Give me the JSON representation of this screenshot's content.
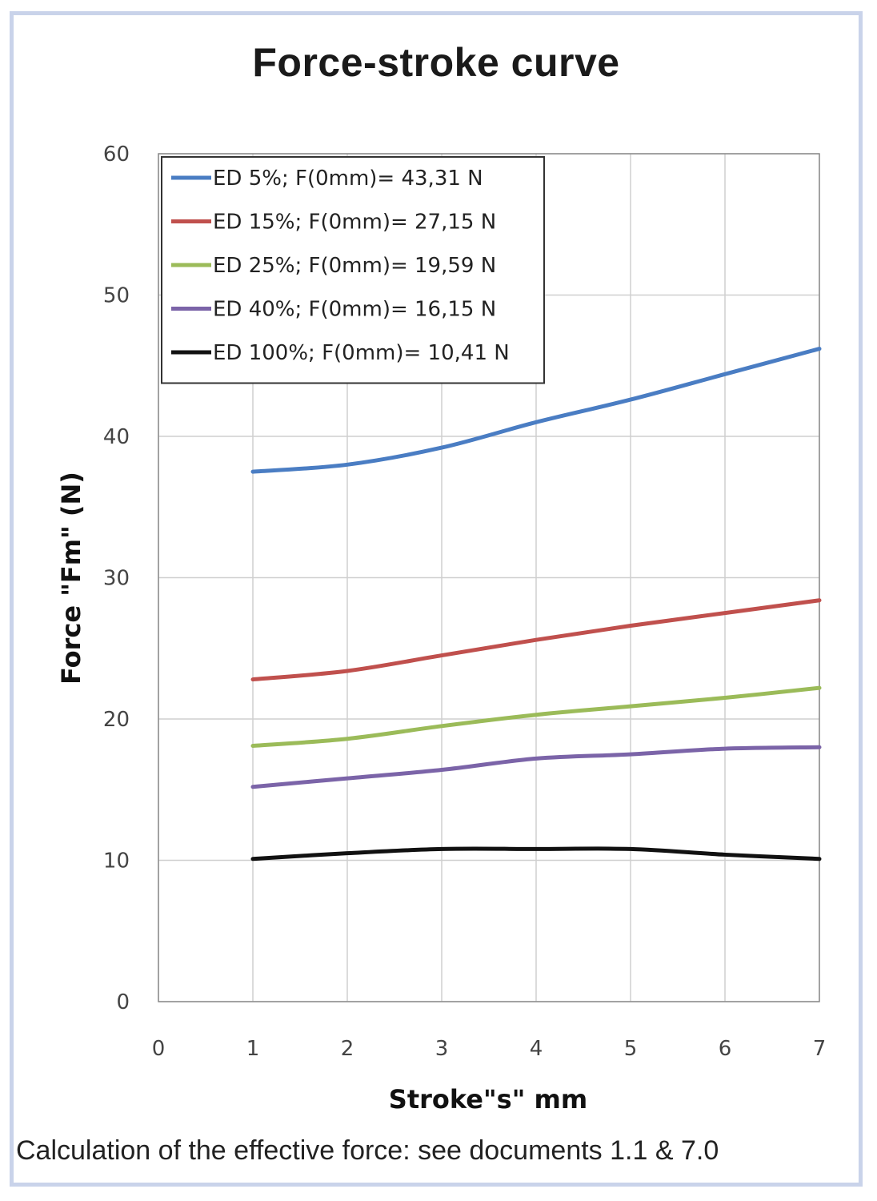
{
  "chart_data": {
    "type": "line",
    "title": "Force-stroke curve",
    "xlabel": "Stroke\"s\" mm",
    "ylabel": "Force \"Fm\" (N)",
    "xlim": [
      0,
      7
    ],
    "ylim": [
      0,
      60
    ],
    "x_ticks": [
      "0",
      "1",
      "2",
      "3",
      "4",
      "5",
      "6",
      "7"
    ],
    "y_ticks": [
      "0",
      "10",
      "20",
      "30",
      "40",
      "50",
      "60"
    ],
    "grid": true,
    "legend_position": "top-left",
    "x": [
      1,
      2,
      3,
      4,
      5,
      6,
      7
    ],
    "series": [
      {
        "name": "ED 5%; F(0mm)= 43,31 N",
        "color": "#4a7dc3",
        "values": [
          37.5,
          38.0,
          39.2,
          41.0,
          42.6,
          44.4,
          46.2
        ]
      },
      {
        "name": "ED 15%; F(0mm)= 27,15 N",
        "color": "#c0504d",
        "values": [
          22.8,
          23.4,
          24.5,
          25.6,
          26.6,
          27.5,
          28.4
        ]
      },
      {
        "name": "ED 25%; F(0mm)= 19,59 N",
        "color": "#9bbb59",
        "values": [
          18.1,
          18.6,
          19.5,
          20.3,
          20.9,
          21.5,
          22.2
        ]
      },
      {
        "name": "ED 40%; F(0mm)= 16,15 N",
        "color": "#7b64a8",
        "values": [
          15.2,
          15.8,
          16.4,
          17.2,
          17.5,
          17.9,
          18.0
        ]
      },
      {
        "name": "ED 100%; F(0mm)= 10,41 N",
        "color": "#111111",
        "values": [
          10.1,
          10.5,
          10.8,
          10.8,
          10.8,
          10.4,
          10.1
        ]
      }
    ]
  },
  "caption": "Calculation of the effective force: see documents 1.1 & 7.0"
}
